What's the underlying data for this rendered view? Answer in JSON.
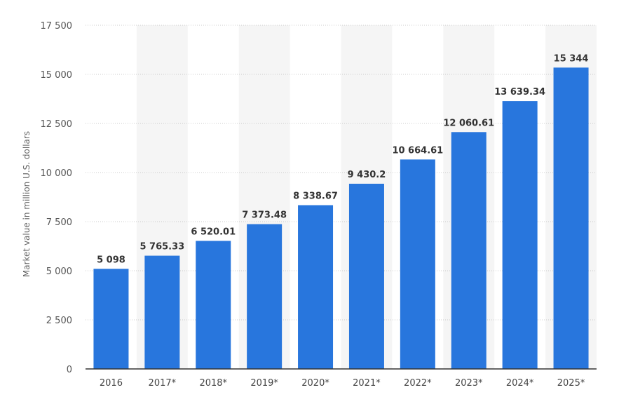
{
  "chart_data": {
    "type": "bar",
    "title": "",
    "xlabel": "",
    "ylabel": "Market value in million U.S. dollars",
    "categories": [
      "2016",
      "2017*",
      "2018*",
      "2019*",
      "2020*",
      "2021*",
      "2022*",
      "2023*",
      "2024*",
      "2025*"
    ],
    "values": [
      5098,
      5765.33,
      6520.01,
      7373.48,
      8338.67,
      9430.2,
      10664.61,
      12060.61,
      13639.34,
      15344
    ],
    "value_labels": [
      "5 098",
      "5 765.33",
      "6 520.01",
      "7 373.48",
      "8 338.67",
      "9 430.2",
      "10 664.61",
      "12 060.61",
      "13 639.34",
      "15 344"
    ],
    "ylim": [
      0,
      17500
    ],
    "y_ticks": [
      0,
      2500,
      5000,
      7500,
      10000,
      12500,
      15000,
      17500
    ],
    "y_tick_labels": [
      "0",
      "2 500",
      "5 000",
      "7 500",
      "10 000",
      "12 500",
      "15 000",
      "17 500"
    ],
    "grid": true,
    "legend": "none",
    "colors": {
      "bar": "#2876dd",
      "band": "#f5f5f5",
      "grid": "#cccccc",
      "axis": "#333333"
    }
  }
}
